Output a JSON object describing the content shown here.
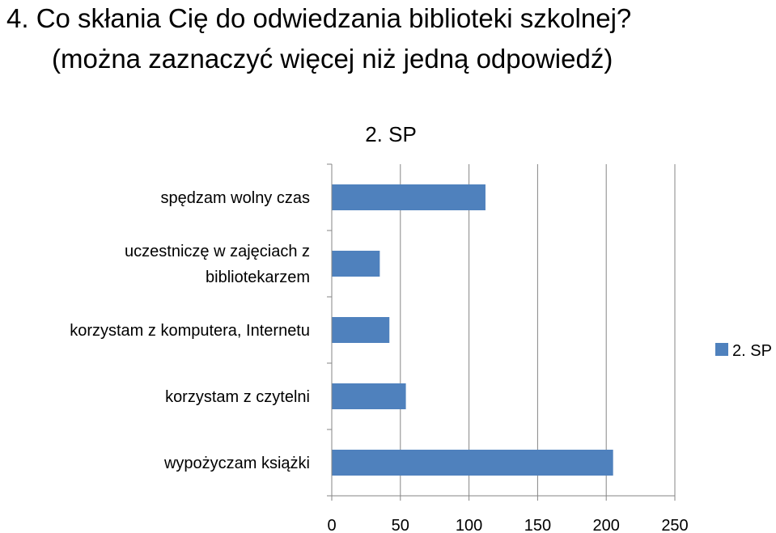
{
  "question": {
    "line1": "4.  Co skłania Cię do odwiedzania biblioteki szkolnej?",
    "line2": "(można zaznaczyć więcej niż jedną odpowiedź)"
  },
  "colors": {
    "bar": "#4F81BD",
    "grid": "#868686",
    "axis": "#868686"
  },
  "chart_data": {
    "type": "bar",
    "orientation": "horizontal",
    "title": "2. SP",
    "categories": [
      "spędzam wolny czas",
      "uczestniczę w zajęciach z bibliotekarzem",
      "korzystam z komputera, Internetu",
      "korzystam z czytelni",
      "wypożyczam książki"
    ],
    "category_lines": [
      [
        "spędzam wolny czas"
      ],
      [
        "uczestniczę w zajęciach z",
        "bibliotekarzem"
      ],
      [
        "korzystam z komputera, Internetu"
      ],
      [
        "korzystam z czytelni"
      ],
      [
        "wypożyczam książki"
      ]
    ],
    "series": [
      {
        "name": "2. SP",
        "values": [
          112,
          35,
          42,
          54,
          205
        ]
      }
    ],
    "xlim": [
      0,
      250
    ],
    "xticks": [
      "0",
      "50",
      "100",
      "150",
      "200",
      "250"
    ],
    "grid": true,
    "legend": "right"
  }
}
